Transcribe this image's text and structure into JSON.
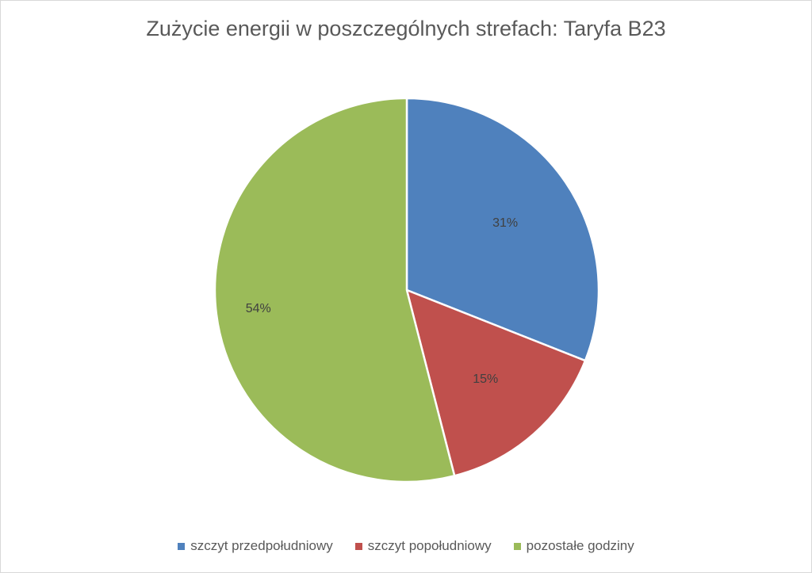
{
  "chart_data": {
    "type": "pie",
    "title": "Zużycie energii w poszczególnych strefach: Taryfa B23",
    "categories": [
      "szczyt przedpołudniowy",
      "szczyt popołudniowy",
      "pozostałe godziny"
    ],
    "values": [
      31,
      15,
      54
    ],
    "labels": [
      "31%",
      "15%",
      "54%"
    ],
    "colors": [
      "#4f81bd",
      "#c0504d",
      "#9bbb59"
    ],
    "legend": "bottom"
  }
}
